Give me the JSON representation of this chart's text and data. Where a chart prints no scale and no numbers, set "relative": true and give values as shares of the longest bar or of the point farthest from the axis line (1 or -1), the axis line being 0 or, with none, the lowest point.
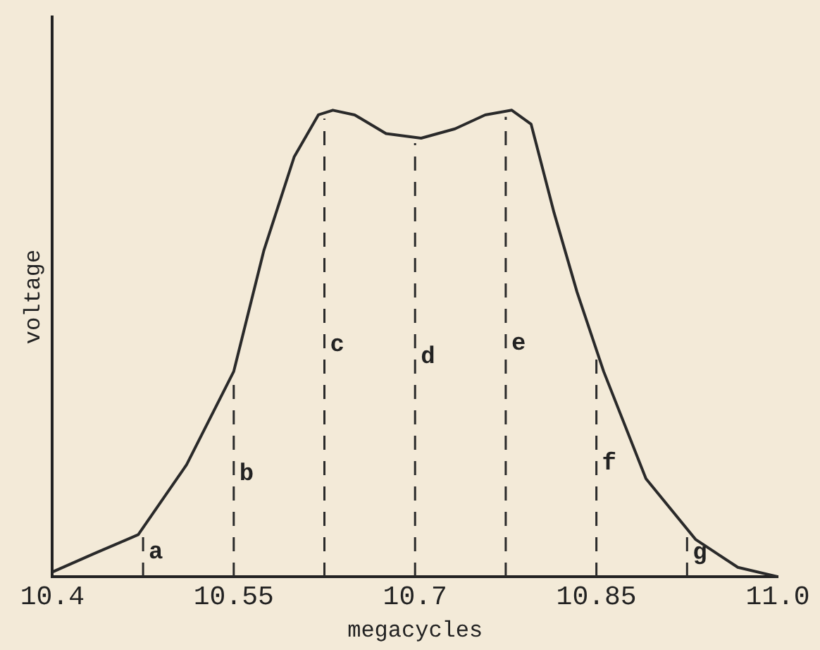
{
  "chart_data": {
    "type": "line",
    "relative": true,
    "xlabel": "megacycles",
    "ylabel": "voltage",
    "color": "#2a2a2a",
    "marker": "none",
    "grid": false,
    "legend": false,
    "xlim": [
      10.4,
      11.0
    ],
    "xticks": [
      10.4,
      10.55,
      10.7,
      10.85,
      {
        "value": 11.0,
        "label": "11.0"
      }
    ],
    "x": [
      10.4,
      10.435,
      10.471,
      10.511,
      10.55,
      10.575,
      10.6,
      10.62,
      10.632,
      10.65,
      10.676,
      10.705,
      10.733,
      10.758,
      10.78,
      10.796,
      10.815,
      10.834,
      10.856,
      10.891,
      10.932,
      10.967,
      11.0
    ],
    "values": [
      0.01,
      0.05,
      0.09,
      0.24,
      0.44,
      0.7,
      0.9,
      0.99,
      1.0,
      0.99,
      0.95,
      0.94,
      0.96,
      0.99,
      1.0,
      0.97,
      0.78,
      0.61,
      0.44,
      0.21,
      0.08,
      0.02,
      0
    ],
    "ref_lines": [
      {
        "axis": "x",
        "value": 10.475,
        "label": "a",
        "line_style": "dashed"
      },
      {
        "axis": "x",
        "value": 10.55,
        "label": "b",
        "line_style": "dashed"
      },
      {
        "axis": "x",
        "value": 10.625,
        "label": "c",
        "line_style": "dashed"
      },
      {
        "axis": "x",
        "value": 10.7,
        "label": "d",
        "line_style": "dashed"
      },
      {
        "axis": "x",
        "value": 10.775,
        "label": "e",
        "line_style": "dashed"
      },
      {
        "axis": "x",
        "value": 10.85,
        "label": "f",
        "line_style": "dashed"
      },
      {
        "axis": "x",
        "value": 10.925,
        "label": "g",
        "line_style": "dashed"
      }
    ]
  }
}
